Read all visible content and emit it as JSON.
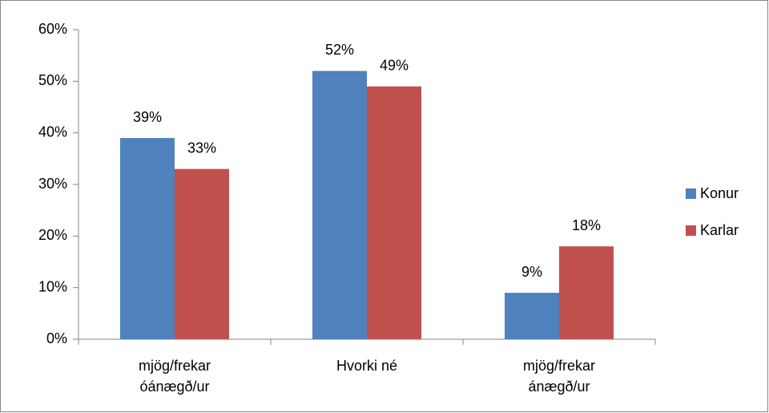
{
  "chart_data": {
    "type": "bar",
    "categories": [
      "mjög/frekar óánægð/ur",
      "Hvorki né",
      "mjög/frekar ánægð/ur"
    ],
    "series": [
      {
        "name": "Konur",
        "color": "#4f81bd",
        "values": [
          39,
          52,
          9
        ],
        "value_labels": [
          "39%",
          "52%",
          "9%"
        ]
      },
      {
        "name": "Karlar",
        "color": "#c0504d",
        "values": [
          33,
          49,
          18
        ],
        "value_labels": [
          "33%",
          "49%",
          "18%"
        ]
      }
    ],
    "ylim": [
      0,
      60
    ],
    "yticks": [
      {
        "value": 0,
        "label": "0%"
      },
      {
        "value": 10,
        "label": "10%"
      },
      {
        "value": 20,
        "label": "20%"
      },
      {
        "value": 30,
        "label": "30%"
      },
      {
        "value": 40,
        "label": "40%"
      },
      {
        "value": 50,
        "label": "50%"
      },
      {
        "value": 60,
        "label": "60%"
      }
    ],
    "grid": false,
    "legend": "right"
  }
}
